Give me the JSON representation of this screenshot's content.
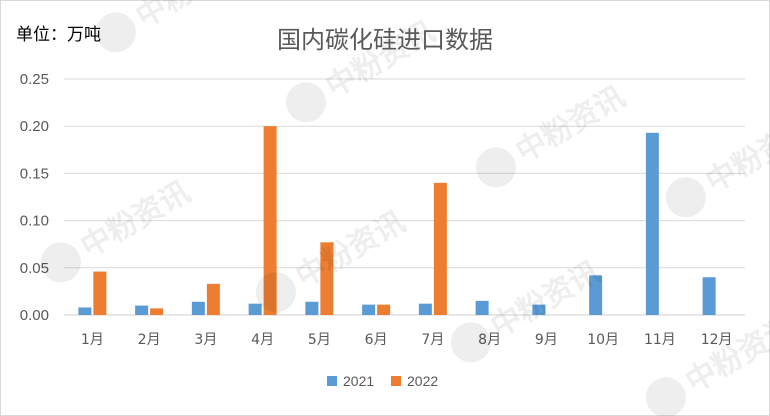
{
  "chart_data": {
    "type": "bar",
    "title": "国内碳化硅进口数据",
    "unit_label": "单位：万吨",
    "categories": [
      "1月",
      "2月",
      "3月",
      "4月",
      "5月",
      "6月",
      "7月",
      "8月",
      "9月",
      "10月",
      "11月",
      "12月"
    ],
    "series": [
      {
        "name": "2021",
        "color": "#5b9bd5",
        "values": [
          0.008,
          0.01,
          0.014,
          0.012,
          0.014,
          0.011,
          0.012,
          0.015,
          0.011,
          0.042,
          0.193,
          0.04
        ]
      },
      {
        "name": "2022",
        "color": "#ed7d31",
        "values": [
          0.046,
          0.007,
          0.033,
          0.2,
          0.077,
          0.011,
          0.14,
          null,
          null,
          null,
          null,
          null
        ]
      }
    ],
    "ylim": [
      0,
      0.25
    ],
    "yticks": [
      "0.00",
      "0.05",
      "0.10",
      "0.15",
      "0.20",
      "0.25"
    ],
    "grid": true,
    "legend_position": "bottom"
  },
  "watermark": {
    "text": "中粉资讯",
    "icon": "p-logo-icon"
  }
}
